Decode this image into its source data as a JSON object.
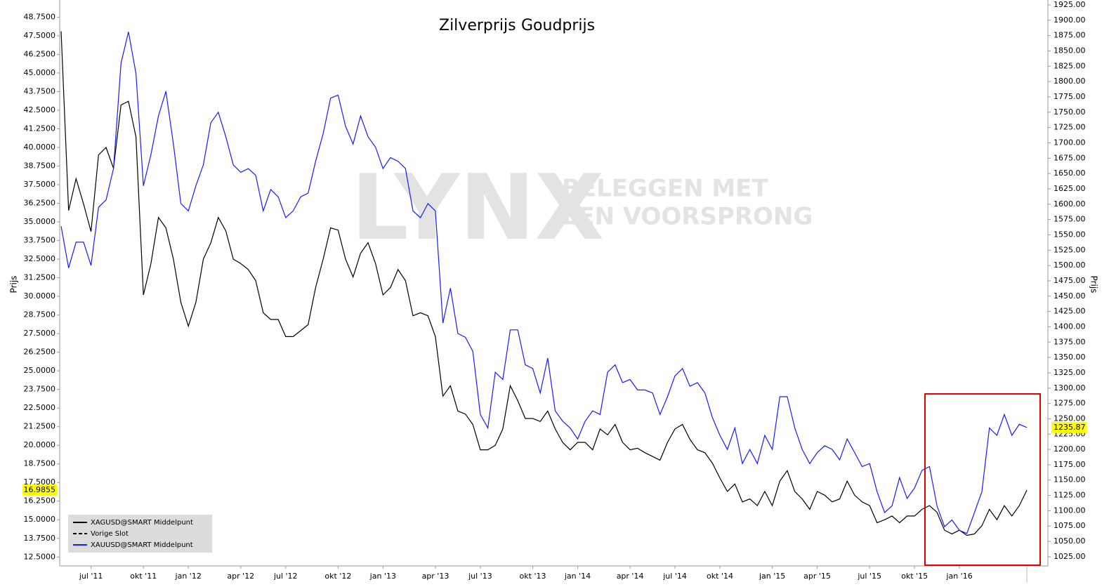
{
  "chart_data": {
    "type": "line",
    "title_parts": [
      {
        "text": "Zilverprijs",
        "color": "#000000"
      },
      {
        "text": "Goudprijs",
        "color": "#0000ff"
      }
    ],
    "ylabel": "Prijs",
    "y2label": "Prijs",
    "watermark": {
      "logo": "LYNX",
      "lines": [
        "BELEGGEN MET",
        "EEN VOORSPRONG"
      ]
    },
    "categories": [
      null,
      null,
      null,
      null,
      "jul '11",
      null,
      null,
      null,
      null,
      null,
      null,
      "okt '11",
      null,
      null,
      null,
      null,
      null,
      "jan '12",
      null,
      null,
      null,
      null,
      null,
      null,
      "apr '12",
      null,
      null,
      null,
      null,
      null,
      "jul '12",
      null,
      null,
      null,
      null,
      null,
      null,
      "okt '12",
      null,
      null,
      null,
      null,
      null,
      "jan '13",
      null,
      null,
      null,
      null,
      null,
      null,
      "apr '13",
      null,
      null,
      null,
      null,
      null,
      "jul '13",
      null,
      null,
      null,
      null,
      null,
      null,
      "okt '13",
      null,
      null,
      null,
      null,
      null,
      "jan '14",
      null,
      null,
      null,
      null,
      null,
      null,
      "apr '14",
      null,
      null,
      null,
      null,
      null,
      "jul '14",
      null,
      null,
      null,
      null,
      null,
      "okt '14",
      null,
      null,
      null,
      null,
      null,
      null,
      "jan '15",
      null,
      null,
      null,
      null,
      null,
      "apr '15",
      null,
      null,
      null,
      null,
      null,
      null,
      "jul '15",
      null,
      null,
      null,
      null,
      null,
      "okt '15",
      null,
      null,
      null,
      null,
      null,
      "jan '16",
      null,
      null,
      null,
      null,
      null,
      null,
      null,
      null,
      null
    ],
    "series": [
      {
        "name": "XAGUSD@SMART Middelpunt",
        "color": "#000000",
        "axis": "y",
        "values": [
          47.8,
          35.77,
          37.9,
          36.2,
          34.35,
          39.5,
          40.0,
          38.6,
          42.85,
          43.1,
          40.7,
          30.1,
          32.2,
          35.3,
          34.6,
          32.5,
          29.6,
          28.0,
          29.6,
          32.5,
          33.6,
          35.3,
          34.4,
          32.5,
          32.2,
          31.8,
          31.05,
          28.9,
          28.45,
          28.45,
          27.3,
          27.3,
          27.7,
          28.1,
          30.6,
          32.5,
          34.6,
          34.45,
          32.5,
          31.3,
          32.9,
          33.6,
          32.2,
          30.1,
          30.6,
          31.8,
          31.05,
          28.7,
          28.9,
          28.7,
          27.3,
          23.3,
          24.0,
          22.3,
          22.1,
          21.4,
          19.7,
          19.7,
          20.0,
          21.1,
          24.0,
          23.0,
          21.8,
          21.8,
          21.6,
          22.3,
          21.1,
          20.2,
          19.7,
          20.2,
          20.2,
          19.7,
          21.1,
          20.7,
          21.4,
          20.2,
          19.7,
          19.8,
          19.5,
          19.25,
          19.0,
          20.2,
          21.1,
          21.4,
          20.4,
          19.7,
          19.5,
          18.8,
          17.8,
          16.9,
          17.4,
          16.2,
          16.4,
          15.95,
          16.9,
          15.95,
          17.6,
          18.3,
          16.9,
          16.4,
          15.7,
          16.9,
          16.65,
          16.2,
          16.4,
          17.6,
          16.65,
          16.2,
          15.95,
          14.8,
          15.0,
          15.25,
          14.8,
          15.25,
          15.25,
          15.7,
          15.95,
          15.5,
          14.3,
          14.05,
          14.3,
          13.95,
          14.05,
          14.6,
          15.7,
          15.0,
          15.95,
          15.25,
          15.95,
          16.9855
        ]
      },
      {
        "name": "XAUUSD@SMART Middelpunt",
        "color": "#1a1aff",
        "axis": "y2",
        "values": [
          1564,
          1496,
          1538,
          1538,
          1500,
          1595,
          1607,
          1658,
          1830,
          1881,
          1813,
          1630,
          1681,
          1744,
          1784,
          1698,
          1601,
          1589,
          1630,
          1664,
          1733,
          1750,
          1710,
          1664,
          1652,
          1658,
          1647,
          1589,
          1624,
          1612,
          1578,
          1589,
          1612,
          1618,
          1670,
          1715,
          1773,
          1778,
          1727,
          1698,
          1744,
          1710,
          1693,
          1658,
          1676,
          1670,
          1658,
          1589,
          1578,
          1601,
          1589,
          1406,
          1463,
          1389,
          1383,
          1360,
          1257,
          1235,
          1326,
          1314,
          1395,
          1395,
          1338,
          1332,
          1292,
          1349,
          1263,
          1246,
          1235,
          1217,
          1246,
          1263,
          1257,
          1326,
          1338,
          1309,
          1314,
          1297,
          1297,
          1292,
          1257,
          1286,
          1320,
          1332,
          1303,
          1309,
          1292,
          1252,
          1223,
          1200,
          1235,
          1177,
          1200,
          1177,
          1223,
          1200,
          1286,
          1286,
          1235,
          1200,
          1177,
          1195,
          1206,
          1200,
          1183,
          1217,
          1195,
          1172,
          1177,
          1131,
          1097,
          1108,
          1154,
          1120,
          1137,
          1166,
          1172,
          1108,
          1074,
          1085,
          1068,
          1063,
          1097,
          1131,
          1235,
          1223,
          1257,
          1223,
          1241,
          1235.87
        ]
      }
    ],
    "legend_extra": [
      {
        "name": "Vorige Slot",
        "color": "#000000",
        "dashed": true
      }
    ],
    "ylim": [
      11.9,
      49.9
    ],
    "yticks": [
      {
        "value": 12.5,
        "label": "12.5000"
      },
      {
        "value": 13.75,
        "label": "13.7500"
      },
      {
        "value": 15,
        "label": "15.0000"
      },
      {
        "value": 16.25,
        "label": "16.2500"
      },
      {
        "value": 17.5,
        "label": "17.5000"
      },
      {
        "value": 18.75,
        "label": "18.7500"
      },
      {
        "value": 20,
        "label": "20.0000"
      },
      {
        "value": 21.25,
        "label": "21.2500"
      },
      {
        "value": 22.5,
        "label": "22.5000"
      },
      {
        "value": 23.75,
        "label": "23.7500"
      },
      {
        "value": 25,
        "label": "25.0000"
      },
      {
        "value": 26.25,
        "label": "26.2500"
      },
      {
        "value": 27.5,
        "label": "27.5000"
      },
      {
        "value": 28.75,
        "label": "28.7500"
      },
      {
        "value": 30,
        "label": "30.0000"
      },
      {
        "value": 31.25,
        "label": "31.2500"
      },
      {
        "value": 32.5,
        "label": "32.5000"
      },
      {
        "value": 33.75,
        "label": "33.7500"
      },
      {
        "value": 35,
        "label": "35.0000"
      },
      {
        "value": 36.25,
        "label": "36.2500"
      },
      {
        "value": 37.5,
        "label": "37.5000"
      },
      {
        "value": 38.75,
        "label": "38.7500"
      },
      {
        "value": 40,
        "label": "40.0000"
      },
      {
        "value": 41.25,
        "label": "41.2500"
      },
      {
        "value": 42.5,
        "label": "42.5000"
      },
      {
        "value": 43.75,
        "label": "43.7500"
      },
      {
        "value": 45,
        "label": "45.0000"
      },
      {
        "value": 46.25,
        "label": "46.2500"
      },
      {
        "value": 47.5,
        "label": "47.5000"
      },
      {
        "value": 48.75,
        "label": "48.7500"
      }
    ],
    "y2lim": [
      1010,
      1933
    ],
    "y2ticks": [
      {
        "value": 1025,
        "label": "1025.00"
      },
      {
        "value": 1050,
        "label": "1050.00"
      },
      {
        "value": 1075,
        "label": "1075.00"
      },
      {
        "value": 1100,
        "label": "1100.00"
      },
      {
        "value": 1125,
        "label": "1125.00"
      },
      {
        "value": 1150,
        "label": "1150.00"
      },
      {
        "value": 1175,
        "label": "1175.00"
      },
      {
        "value": 1200,
        "label": "1200.00"
      },
      {
        "value": 1225,
        "label": "1225.00"
      },
      {
        "value": 1250,
        "label": "1250.00"
      },
      {
        "value": 1275,
        "label": "1275.00"
      },
      {
        "value": 1300,
        "label": "1300.00"
      },
      {
        "value": 1325,
        "label": "1325.00"
      },
      {
        "value": 1350,
        "label": "1350.00"
      },
      {
        "value": 1375,
        "label": "1375.00"
      },
      {
        "value": 1400,
        "label": "1400.00"
      },
      {
        "value": 1425,
        "label": "1425.00"
      },
      {
        "value": 1450,
        "label": "1450.00"
      },
      {
        "value": 1475,
        "label": "1475.00"
      },
      {
        "value": 1500,
        "label": "1500.00"
      },
      {
        "value": 1525,
        "label": "1525.00"
      },
      {
        "value": 1550,
        "label": "1550.00"
      },
      {
        "value": 1575,
        "label": "1575.00"
      },
      {
        "value": 1600,
        "label": "1600.00"
      },
      {
        "value": 1625,
        "label": "1625.00"
      },
      {
        "value": 1650,
        "label": "1650.00"
      },
      {
        "value": 1675,
        "label": "1675.00"
      },
      {
        "value": 1700,
        "label": "1700.00"
      },
      {
        "value": 1725,
        "label": "1725.00"
      },
      {
        "value": 1750,
        "label": "1750.00"
      },
      {
        "value": 1775,
        "label": "1775.00"
      },
      {
        "value": 1800,
        "label": "1800.00"
      },
      {
        "value": 1825,
        "label": "1825.00"
      },
      {
        "value": 1850,
        "label": "1850.00"
      },
      {
        "value": 1875,
        "label": "1875.00"
      },
      {
        "value": 1900,
        "label": "1900.00"
      },
      {
        "value": 1925,
        "label": "1925.00"
      }
    ],
    "grid": false,
    "highlight_last": true
  }
}
